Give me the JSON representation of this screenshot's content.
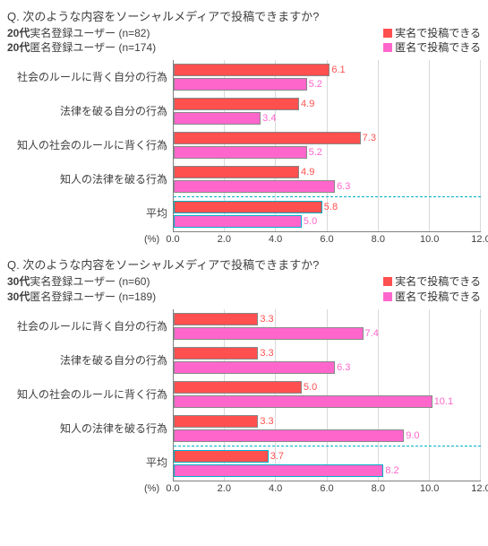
{
  "colors": {
    "real": "#ff5050",
    "anon": "#ff66cc",
    "avg_border": "#00b0c8",
    "grid": "#d9d9d9",
    "axis": "#7f7f7f",
    "text": "#404040",
    "bg": "#ffffff"
  },
  "chart1": {
    "question": "Q. 次のような内容をソーシャルメディアで投稿できますか?",
    "meta_real": "20代実名登録ユーザー (n=82)",
    "meta_real_prefix": "20代",
    "meta_real_rest": "実名登録ユーザー (n=82)",
    "meta_anon_prefix": "20代",
    "meta_anon_rest": "匿名登録ユーザー (n=174)",
    "legend_real": "実名で投稿できる",
    "legend_anon": "匿名で投稿できる",
    "x_unit": "(%)",
    "xlim_max": 12.0,
    "xticks": [
      "0.0",
      "2.0",
      "4.0",
      "6.0",
      "8.0",
      "10.0",
      "12.0"
    ],
    "categories": [
      {
        "label": "社会のルールに背く自分の行為",
        "real": 6.1,
        "anon": 5.2
      },
      {
        "label": "法律を破る自分の行為",
        "real": 4.9,
        "anon": 3.4
      },
      {
        "label": "知人の社会のルールに背く行為",
        "real": 7.3,
        "anon": 5.2
      },
      {
        "label": "知人の法律を破る行為",
        "real": 4.9,
        "anon": 6.3
      }
    ],
    "average": {
      "label": "平均",
      "real": 5.8,
      "anon": 5.0
    }
  },
  "chart2": {
    "question": "Q. 次のような内容をソーシャルメディアで投稿できますか?",
    "meta_real_prefix": "30代",
    "meta_real_rest": "実名登録ユーザー (n=60)",
    "meta_anon_prefix": "30代",
    "meta_anon_rest": "匿名登録ユーザー (n=189)",
    "legend_real": "実名で投稿できる",
    "legend_anon": "匿名で投稿できる",
    "x_unit": "(%)",
    "xlim_max": 12.0,
    "xticks": [
      "0.0",
      "2.0",
      "4.0",
      "6.0",
      "8.0",
      "10.0",
      "12.0"
    ],
    "categories": [
      {
        "label": "社会のルールに背く自分の行為",
        "real": 3.3,
        "anon": 7.4
      },
      {
        "label": "法律を破る自分の行為",
        "real": 3.3,
        "anon": 6.3
      },
      {
        "label": "知人の社会のルールに背く行為",
        "real": 5.0,
        "anon": 10.1
      },
      {
        "label": "知人の法律を破る行為",
        "real": 3.3,
        "anon": 9.0
      }
    ],
    "average": {
      "label": "平均",
      "real": 3.7,
      "anon": 8.2
    }
  }
}
